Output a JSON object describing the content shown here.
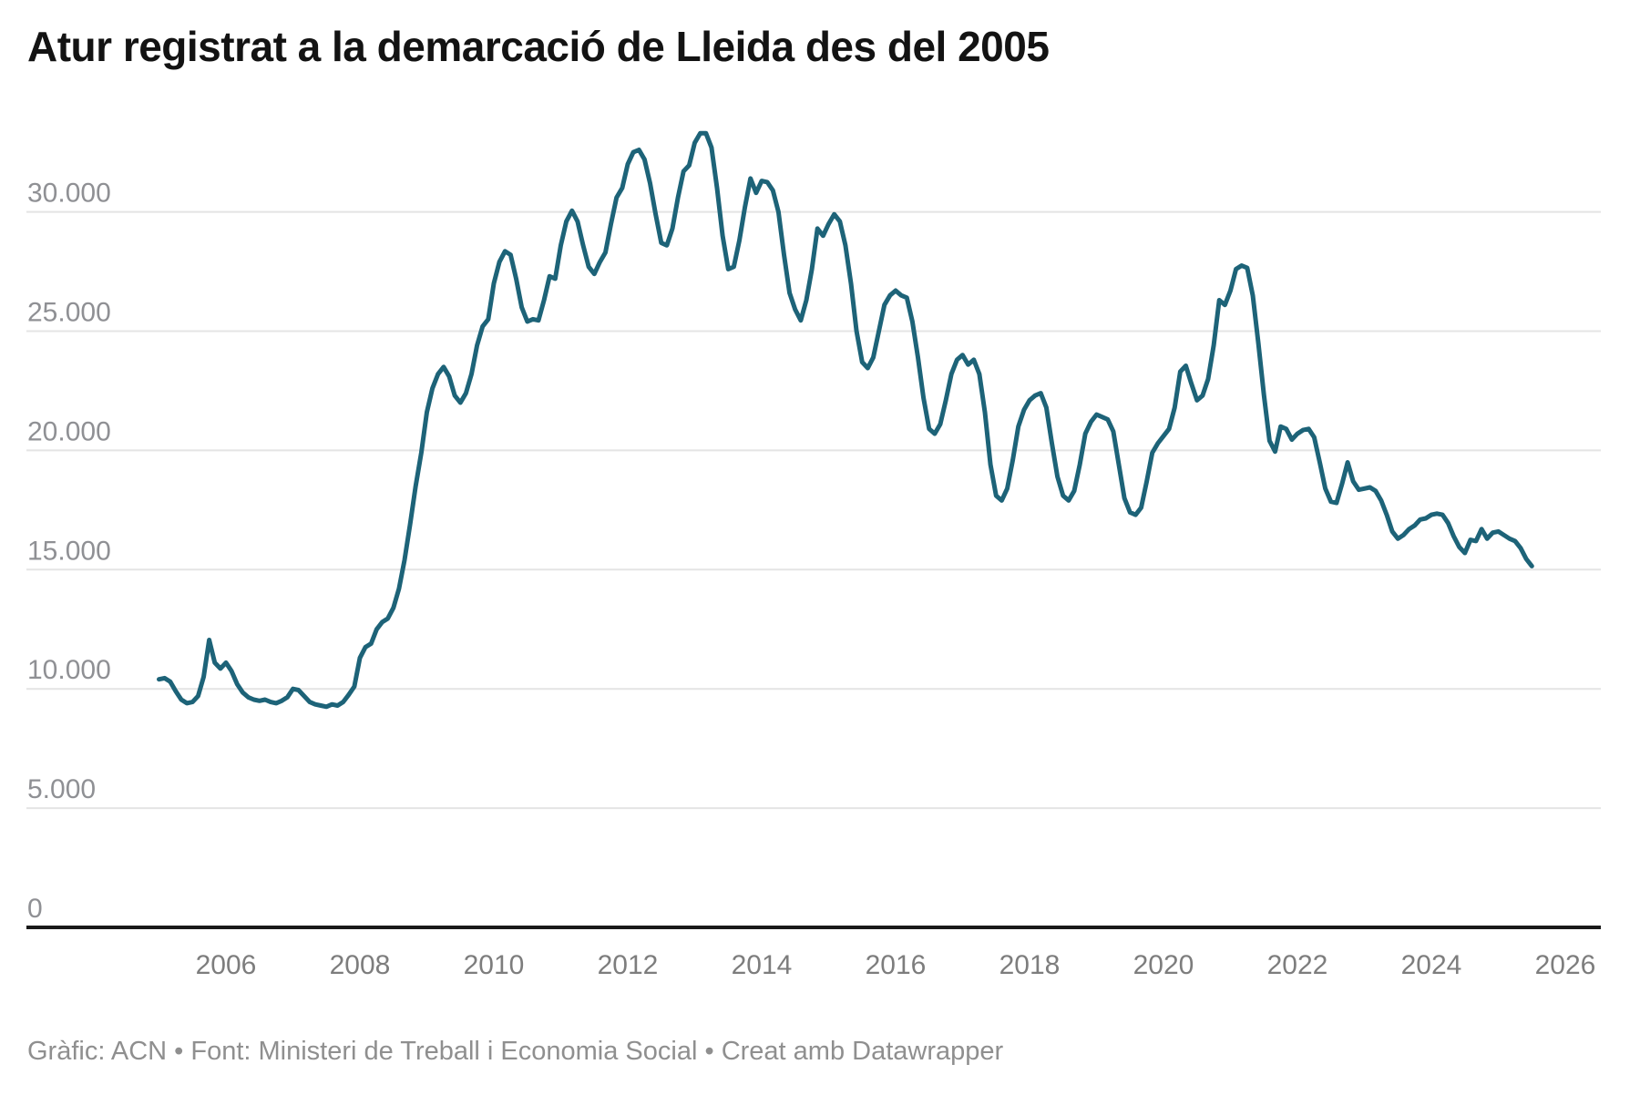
{
  "header": {
    "title": "Atur registrat a la demarcació de Lleida des del 2005"
  },
  "footer": {
    "text": "Gràfic: ACN • Font: Ministeri de Treball i Economia Social  • Creat amb Datawrapper"
  },
  "chart_data": {
    "type": "line",
    "title": "Atur registrat a la demarcació de Lleida des del 2005",
    "xlabel": "",
    "ylabel": "",
    "unit": "persones",
    "frequency": "monthly",
    "start": "2005-01",
    "end": "2025-07",
    "line_color": "#1d6378",
    "grid": "horizontal",
    "legend": "none",
    "xlim": [
      2004.75,
      2026.3
    ],
    "ylim": [
      0,
      33700
    ],
    "x_ticks": [
      {
        "value": 2006,
        "label": "2006"
      },
      {
        "value": 2008,
        "label": "2008"
      },
      {
        "value": 2010,
        "label": "2010"
      },
      {
        "value": 2012,
        "label": "2012"
      },
      {
        "value": 2014,
        "label": "2014"
      },
      {
        "value": 2016,
        "label": "2016"
      },
      {
        "value": 2018,
        "label": "2018"
      },
      {
        "value": 2020,
        "label": "2020"
      },
      {
        "value": 2022,
        "label": "2022"
      },
      {
        "value": 2024,
        "label": "2024"
      },
      {
        "value": 2026,
        "label": "2026"
      }
    ],
    "y_ticks": [
      {
        "value": 0,
        "label": "0"
      },
      {
        "value": 5000,
        "label": "5.000"
      },
      {
        "value": 10000,
        "label": "10.000"
      },
      {
        "value": 15000,
        "label": "15.000"
      },
      {
        "value": 20000,
        "label": "20.000"
      },
      {
        "value": 25000,
        "label": "25.000"
      },
      {
        "value": 30000,
        "label": "30.000"
      }
    ],
    "series": [
      {
        "name": "Atur registrat",
        "values": [
          10400,
          10450,
          10300,
          9900,
          9550,
          9400,
          9450,
          9700,
          10500,
          12050,
          11100,
          10850,
          11100,
          10750,
          10200,
          9850,
          9650,
          9550,
          9500,
          9550,
          9450,
          9400,
          9500,
          9650,
          10000,
          9950,
          9700,
          9450,
          9350,
          9300,
          9250,
          9350,
          9300,
          9450,
          9750,
          10100,
          11300,
          11750,
          11900,
          12500,
          12800,
          12950,
          13400,
          14200,
          15400,
          16900,
          18500,
          19900,
          21600,
          22600,
          23200,
          23500,
          23100,
          22300,
          22000,
          22400,
          23200,
          24400,
          25200,
          25500,
          27000,
          27900,
          28350,
          28200,
          27200,
          26000,
          25400,
          25500,
          25450,
          26300,
          27300,
          27200,
          28600,
          29600,
          30050,
          29600,
          28600,
          27700,
          27400,
          27900,
          28300,
          29500,
          30600,
          31000,
          32000,
          32500,
          32600,
          32200,
          31200,
          29900,
          28700,
          28600,
          29300,
          30600,
          31700,
          31950,
          32900,
          33300,
          33300,
          32700,
          31000,
          29000,
          27600,
          27700,
          28800,
          30200,
          31400,
          30800,
          31300,
          31250,
          30900,
          30000,
          28200,
          26600,
          25900,
          25450,
          26300,
          27600,
          29300,
          29000,
          29500,
          29900,
          29600,
          28600,
          27000,
          25000,
          23700,
          23450,
          23900,
          25000,
          26100,
          26500,
          26700,
          26500,
          26400,
          25400,
          23900,
          22200,
          20900,
          20700,
          21100,
          22100,
          23200,
          23800,
          24000,
          23600,
          23800,
          23200,
          21600,
          19400,
          18100,
          17900,
          18400,
          19600,
          21000,
          21700,
          22100,
          22300,
          22400,
          21800,
          20300,
          18900,
          18100,
          17900,
          18300,
          19400,
          20700,
          21200,
          21500,
          21400,
          21300,
          20800,
          19400,
          18000,
          17400,
          17300,
          17600,
          18700,
          19900,
          20300,
          20600,
          20900,
          21800,
          23300,
          23550,
          22800,
          22100,
          22300,
          23000,
          24400,
          26300,
          26100,
          26700,
          27600,
          27750,
          27650,
          26500,
          24500,
          22300,
          20400,
          19950,
          21000,
          20900,
          20450,
          20700,
          20850,
          20900,
          20550,
          19500,
          18400,
          17850,
          17800,
          18600,
          19500,
          18700,
          18350,
          18400,
          18450,
          18300,
          17900,
          17300,
          16600,
          16300,
          16450,
          16700,
          16850,
          17100,
          17150,
          17300,
          17350,
          17300,
          16950,
          16400,
          15950,
          15700,
          16250,
          16200,
          16700,
          16300,
          16550,
          16600,
          16450,
          16300,
          16200,
          15900,
          15450,
          15150
        ]
      }
    ]
  }
}
